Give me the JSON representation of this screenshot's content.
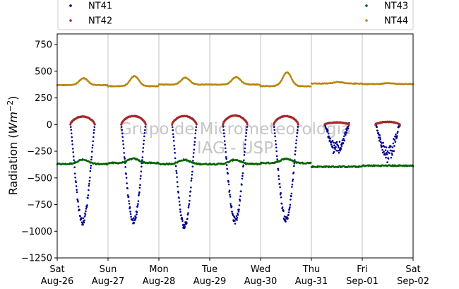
{
  "chart_data": {
    "type": "scatter",
    "ylabel_main": "Radiation (",
    "ylabel_unit": "Wm",
    "ylabel_exp": "−2",
    "ylabel_close": ")",
    "xlabel": "",
    "ylim": [
      -1250,
      850
    ],
    "yticks": [
      750,
      500,
      250,
      0,
      -250,
      -500,
      -750,
      -1000,
      -1250
    ],
    "ytick_labels": [
      "750",
      "500",
      "250",
      "0",
      "−250",
      "−500",
      "−750",
      "−1000",
      "−1250"
    ],
    "xlim": [
      "2017-08-26",
      "2017-09-02"
    ],
    "xticks": [
      {
        "day": "Sat",
        "date": "Aug-26"
      },
      {
        "day": "Sun",
        "date": "Aug-27"
      },
      {
        "day": "Mon",
        "date": "Aug-28"
      },
      {
        "day": "Tue",
        "date": "Aug-29"
      },
      {
        "day": "Wed",
        "date": "Aug-30"
      },
      {
        "day": "Thu",
        "date": "Aug-31"
      },
      {
        "day": "Fri",
        "date": "Sep-01"
      },
      {
        "day": "Sat",
        "date": "Sep-02"
      }
    ],
    "grid": "vertical",
    "legend_position": "top",
    "watermark_lines": [
      "Grupo de Micrometeorologia",
      "IAG - USP"
    ],
    "series": [
      {
        "name": "NT41",
        "color": "#00008b",
        "daily_min": [
          -910,
          -905,
          -950,
          -900,
          -890,
          -270,
          -340
        ]
      },
      {
        "name": "NT42",
        "color": "#a52a2a",
        "daily_max": [
          75,
          80,
          80,
          85,
          80,
          20,
          25
        ]
      },
      {
        "name": "NT43",
        "color": "#006400",
        "daily_level": [
          -370,
          -360,
          -370,
          -370,
          -360,
          -395,
          -385
        ]
      },
      {
        "name": "NT44",
        "color": "#b8860b",
        "daily_peak": [
          435,
          455,
          440,
          445,
          490,
          400,
          390
        ],
        "daily_base": [
          370,
          360,
          375,
          375,
          360,
          385,
          380
        ]
      }
    ]
  }
}
